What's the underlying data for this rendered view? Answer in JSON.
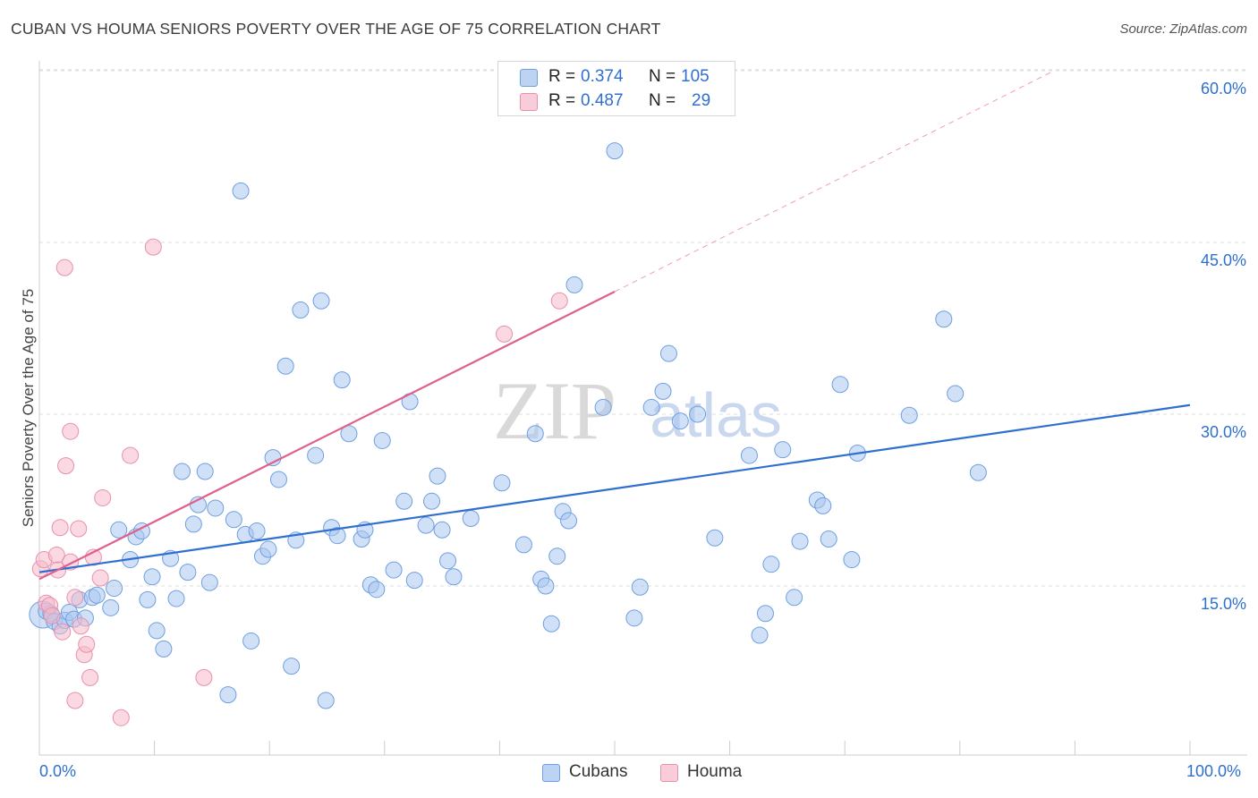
{
  "title": "CUBAN VS HOUMA SENIORS POVERTY OVER THE AGE OF 75 CORRELATION CHART",
  "source": "Source: ZipAtlas.com",
  "watermark": {
    "zip": "ZIP",
    "atlas": "atlas"
  },
  "legend": {
    "rows": [
      {
        "r_label": "R =",
        "r_value": "0.374",
        "n_label": "N =",
        "n_value": "105"
      },
      {
        "r_label": "R =",
        "r_value": "0.487",
        "n_label": "N =",
        "n_value": "29"
      }
    ]
  },
  "bottom_legend": {
    "cubans": "Cubans",
    "houma": "Houma"
  },
  "colors": {
    "cubans_fill": "#a9c6f0",
    "cubans_stroke": "#6f9fe0",
    "cubans_line": "#2f6fd0",
    "houma_fill": "#f6b9cb",
    "houma_stroke": "#e890ab",
    "houma_line": "#e0608b",
    "tick_text": "#2f6fd0",
    "grid": "#dddddd"
  },
  "chart_data": {
    "type": "scatter",
    "title": "CUBAN VS HOUMA SENIORS POVERTY OVER THE AGE OF 75 CORRELATION CHART",
    "xlabel": "",
    "ylabel": "Seniors Poverty Over the Age of 75",
    "xlim": [
      0,
      100
    ],
    "ylim": [
      0,
      63
    ],
    "x_tick_labels": [
      "0.0%",
      "100.0%"
    ],
    "y_ticks": [
      15,
      30,
      45,
      60
    ],
    "y_tick_labels": [
      "15.0%",
      "30.0%",
      "45.0%",
      "60.0%"
    ],
    "series": [
      {
        "name": "Cubans",
        "r": 0.374,
        "n": 105,
        "trend": {
          "x": [
            0,
            100
          ],
          "y": [
            16.2,
            30.8
          ]
        },
        "points": [
          [
            0.3,
            12.5
          ],
          [
            0.6,
            12.8
          ],
          [
            1.0,
            12.6
          ],
          [
            1.3,
            11.9
          ],
          [
            1.8,
            11.5
          ],
          [
            2.2,
            12.0
          ],
          [
            2.6,
            12.7
          ],
          [
            3.0,
            12.1
          ],
          [
            3.5,
            13.8
          ],
          [
            4.0,
            12.2
          ],
          [
            4.6,
            14.0
          ],
          [
            5.0,
            14.2
          ],
          [
            6.2,
            13.1
          ],
          [
            6.5,
            14.8
          ],
          [
            6.9,
            19.9
          ],
          [
            7.9,
            17.3
          ],
          [
            8.4,
            19.3
          ],
          [
            8.9,
            19.8
          ],
          [
            9.4,
            13.8
          ],
          [
            9.8,
            15.8
          ],
          [
            10.2,
            11.1
          ],
          [
            10.8,
            9.5
          ],
          [
            11.4,
            17.4
          ],
          [
            11.9,
            13.9
          ],
          [
            12.4,
            25.0
          ],
          [
            12.9,
            16.2
          ],
          [
            13.4,
            20.4
          ],
          [
            13.8,
            22.1
          ],
          [
            14.4,
            25.0
          ],
          [
            14.8,
            15.3
          ],
          [
            15.3,
            21.8
          ],
          [
            16.4,
            5.5
          ],
          [
            16.9,
            20.8
          ],
          [
            17.5,
            49.5
          ],
          [
            17.9,
            19.5
          ],
          [
            18.4,
            10.2
          ],
          [
            18.9,
            19.8
          ],
          [
            19.4,
            17.6
          ],
          [
            19.9,
            18.2
          ],
          [
            20.3,
            26.2
          ],
          [
            20.8,
            24.3
          ],
          [
            21.4,
            34.2
          ],
          [
            21.9,
            8.0
          ],
          [
            22.3,
            19.0
          ],
          [
            22.7,
            39.1
          ],
          [
            24.0,
            26.4
          ],
          [
            24.5,
            39.9
          ],
          [
            24.9,
            5.0
          ],
          [
            25.4,
            20.1
          ],
          [
            25.9,
            19.4
          ],
          [
            26.3,
            33.0
          ],
          [
            26.9,
            28.3
          ],
          [
            28.0,
            19.1
          ],
          [
            28.3,
            19.9
          ],
          [
            28.8,
            15.1
          ],
          [
            29.3,
            14.7
          ],
          [
            29.8,
            27.7
          ],
          [
            30.8,
            16.4
          ],
          [
            31.7,
            22.4
          ],
          [
            32.2,
            31.1
          ],
          [
            32.6,
            15.5
          ],
          [
            33.6,
            20.3
          ],
          [
            34.1,
            22.4
          ],
          [
            34.6,
            24.6
          ],
          [
            35.0,
            19.9
          ],
          [
            35.5,
            17.2
          ],
          [
            36.0,
            15.8
          ],
          [
            37.5,
            20.9
          ],
          [
            40.2,
            24.0
          ],
          [
            42.1,
            18.6
          ],
          [
            43.1,
            28.3
          ],
          [
            43.6,
            15.6
          ],
          [
            44.0,
            15.0
          ],
          [
            44.5,
            11.7
          ],
          [
            45.0,
            17.6
          ],
          [
            45.5,
            21.5
          ],
          [
            46.0,
            20.7
          ],
          [
            46.5,
            41.3
          ],
          [
            49.0,
            30.6
          ],
          [
            50.0,
            53.0
          ],
          [
            51.7,
            12.2
          ],
          [
            52.2,
            14.9
          ],
          [
            53.2,
            30.6
          ],
          [
            54.2,
            32.0
          ],
          [
            54.7,
            35.3
          ],
          [
            55.7,
            29.4
          ],
          [
            57.2,
            30.0
          ],
          [
            58.7,
            19.2
          ],
          [
            61.7,
            26.4
          ],
          [
            62.6,
            10.7
          ],
          [
            63.1,
            12.6
          ],
          [
            63.6,
            16.9
          ],
          [
            64.6,
            26.9
          ],
          [
            65.6,
            14.0
          ],
          [
            66.1,
            18.9
          ],
          [
            67.6,
            22.5
          ],
          [
            68.1,
            22.0
          ],
          [
            68.6,
            19.1
          ],
          [
            69.6,
            32.6
          ],
          [
            70.6,
            17.3
          ],
          [
            71.1,
            26.6
          ],
          [
            75.6,
            29.9
          ],
          [
            78.6,
            38.3
          ],
          [
            79.6,
            31.8
          ],
          [
            81.6,
            24.9
          ]
        ]
      },
      {
        "name": "Houma",
        "r": 0.487,
        "n": 29,
        "trend": {
          "x": [
            0,
            50
          ],
          "y": [
            15.6,
            40.7
          ]
        },
        "trend_extension": {
          "x": [
            50,
            88
          ],
          "y": [
            40.7,
            59.9
          ]
        },
        "points": [
          [
            0.1,
            16.5
          ],
          [
            0.4,
            17.3
          ],
          [
            0.6,
            13.5
          ],
          [
            0.9,
            13.3
          ],
          [
            1.1,
            12.4
          ],
          [
            1.5,
            17.7
          ],
          [
            1.6,
            16.4
          ],
          [
            1.8,
            20.1
          ],
          [
            2.0,
            11.0
          ],
          [
            2.2,
            42.8
          ],
          [
            2.3,
            25.5
          ],
          [
            2.7,
            17.1
          ],
          [
            2.7,
            28.5
          ],
          [
            3.1,
            14.0
          ],
          [
            3.1,
            5.0
          ],
          [
            3.4,
            20.0
          ],
          [
            3.6,
            11.5
          ],
          [
            3.9,
            9.0
          ],
          [
            4.1,
            9.9
          ],
          [
            4.4,
            7.0
          ],
          [
            4.7,
            17.5
          ],
          [
            5.3,
            15.7
          ],
          [
            5.5,
            22.7
          ],
          [
            7.1,
            3.5
          ],
          [
            7.9,
            26.4
          ],
          [
            9.9,
            44.6
          ],
          [
            14.3,
            7.0
          ],
          [
            40.4,
            37.0
          ],
          [
            45.2,
            39.9
          ]
        ]
      }
    ]
  }
}
